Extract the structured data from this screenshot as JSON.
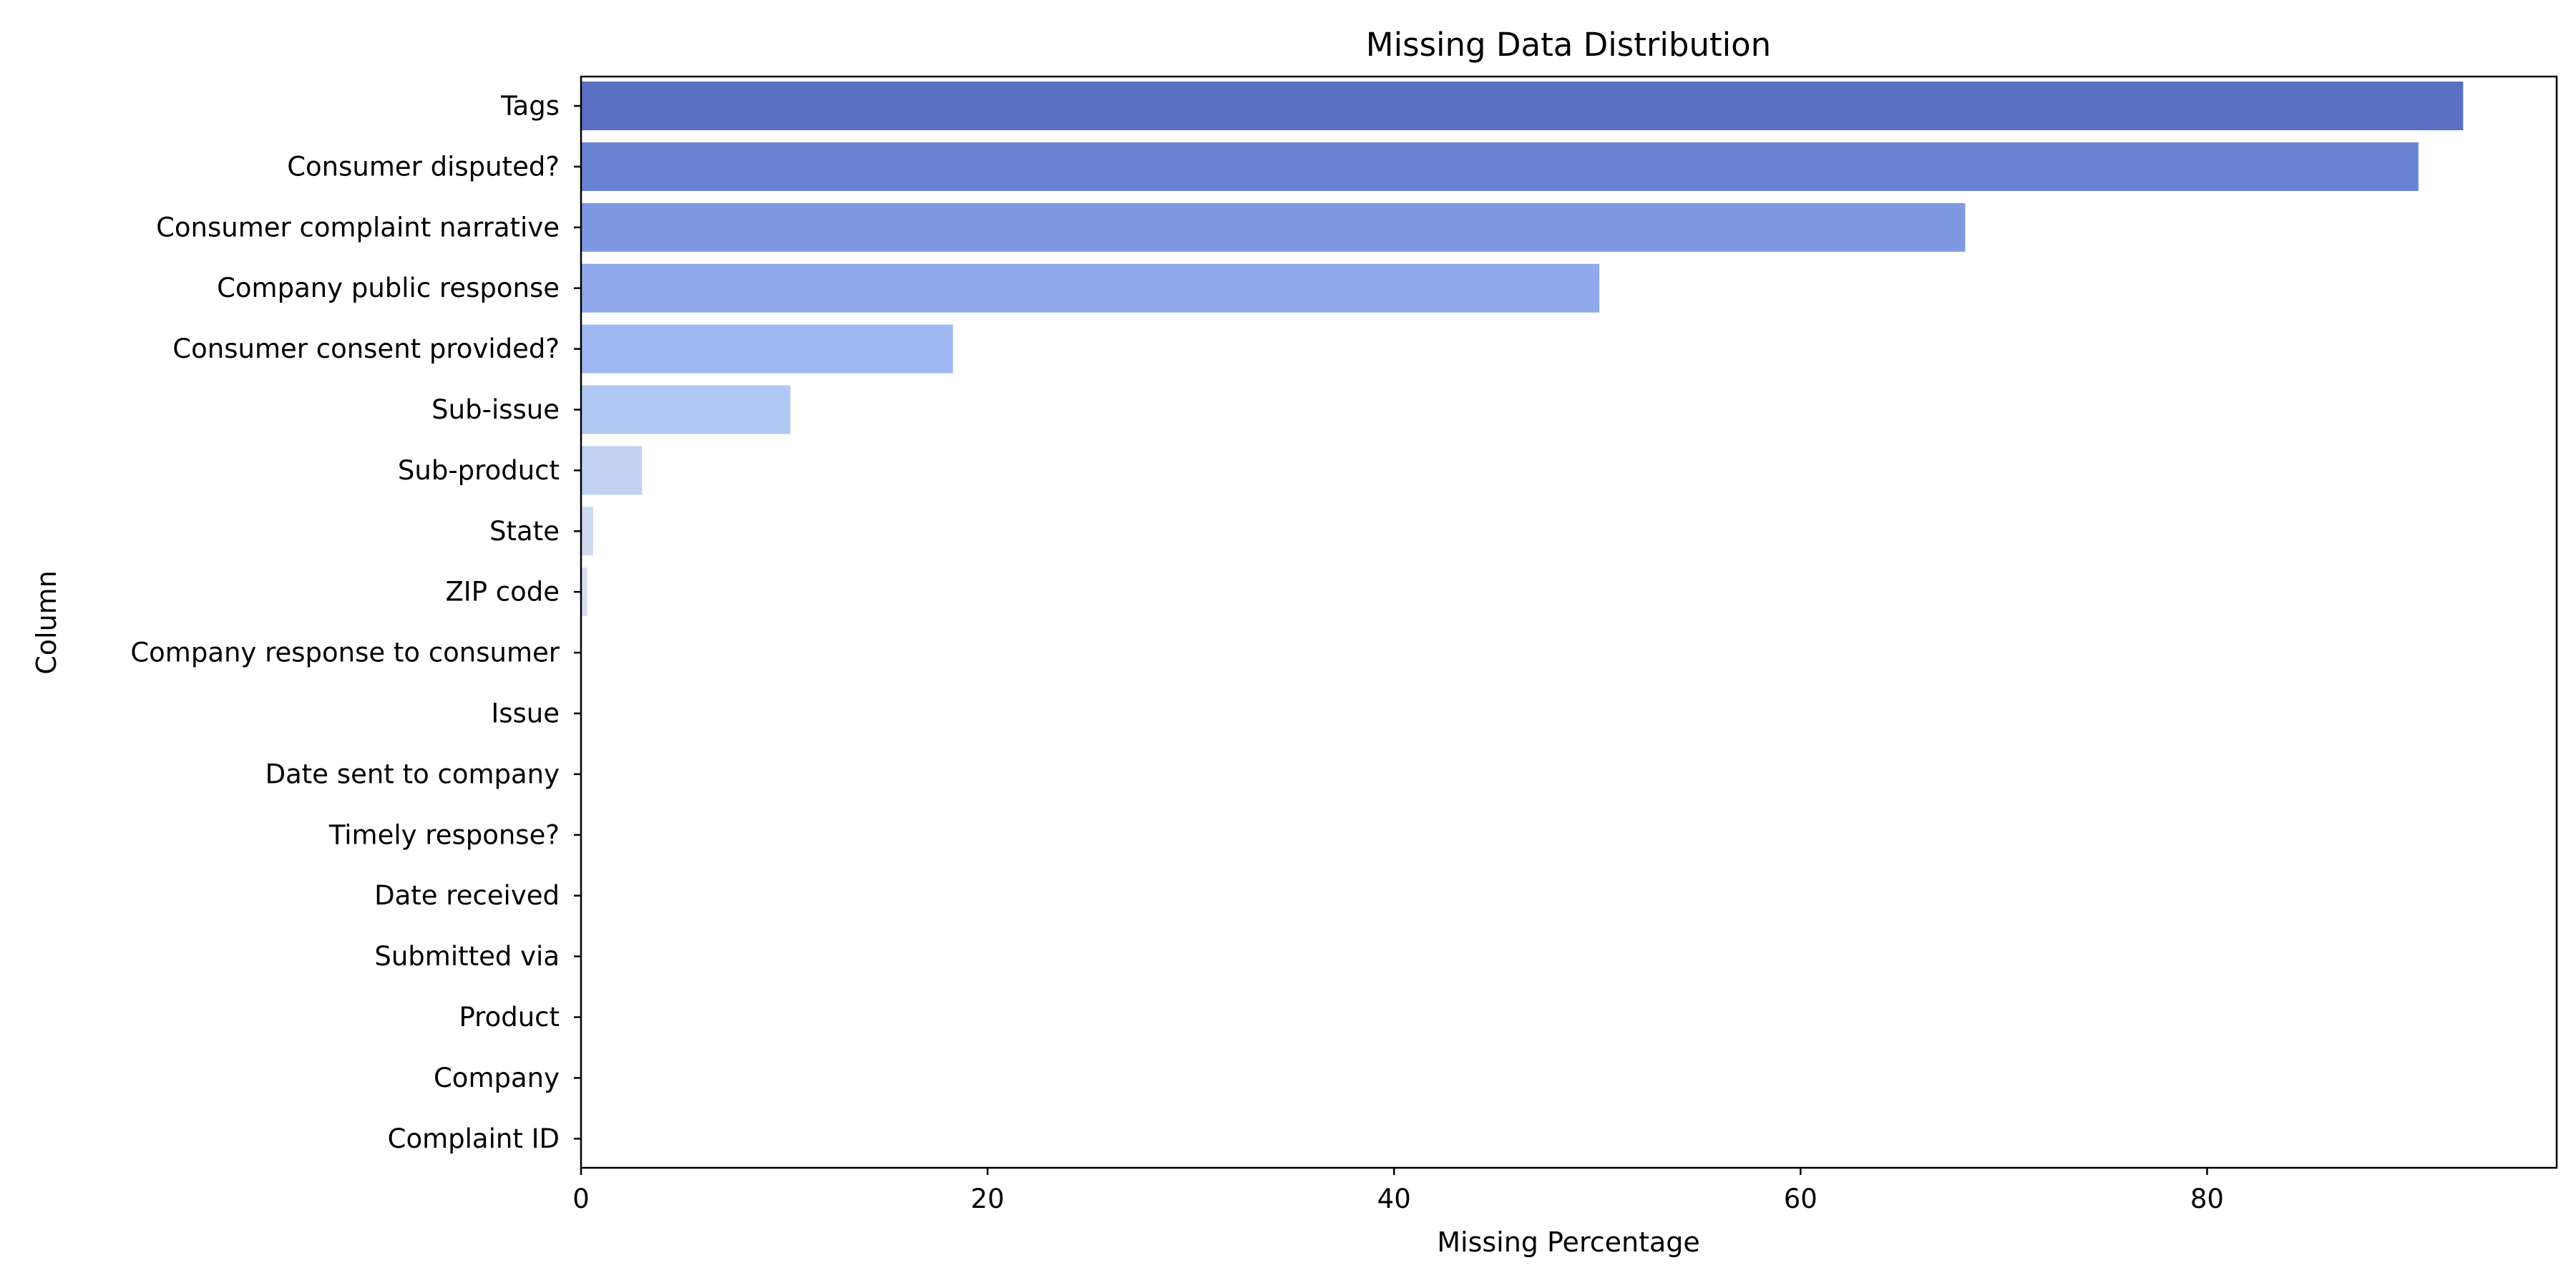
{
  "chart_data": {
    "type": "bar",
    "orientation": "horizontal",
    "title": "Missing Data Distribution",
    "xlabel": "Missing Percentage",
    "ylabel": "Column",
    "xlim": [
      0,
      97.2
    ],
    "xticks": [
      0,
      20,
      40,
      60,
      80
    ],
    "categories": [
      "Tags",
      "Consumer disputed?",
      "Consumer complaint narrative",
      "Company public response",
      "Consumer consent provided?",
      "Sub-issue",
      "Sub-product",
      "State",
      "ZIP code",
      "Company response to consumer",
      "Issue",
      "Date sent to company",
      "Timely response?",
      "Date received",
      "Submitted via",
      "Product",
      "Company",
      "Complaint ID"
    ],
    "values": [
      92.6,
      90.4,
      68.1,
      50.1,
      18.3,
      10.3,
      3.0,
      0.6,
      0.3,
      0,
      0,
      0,
      0,
      0,
      0,
      0,
      0,
      0
    ],
    "colors": [
      "#5b70c4",
      "#6b83d3",
      "#7e98e2",
      "#90a9ec",
      "#a1b9f2",
      "#b1c7f4",
      "#c0d1f3",
      "#cfdaf1",
      "#d9dfee",
      "#dddfe6",
      "#dddddd",
      "#dddddd",
      "#dddddd",
      "#dddddd",
      "#dddddd",
      "#dddddd",
      "#dddddd",
      "#dddddd"
    ],
    "grid": false,
    "legend": "none"
  }
}
